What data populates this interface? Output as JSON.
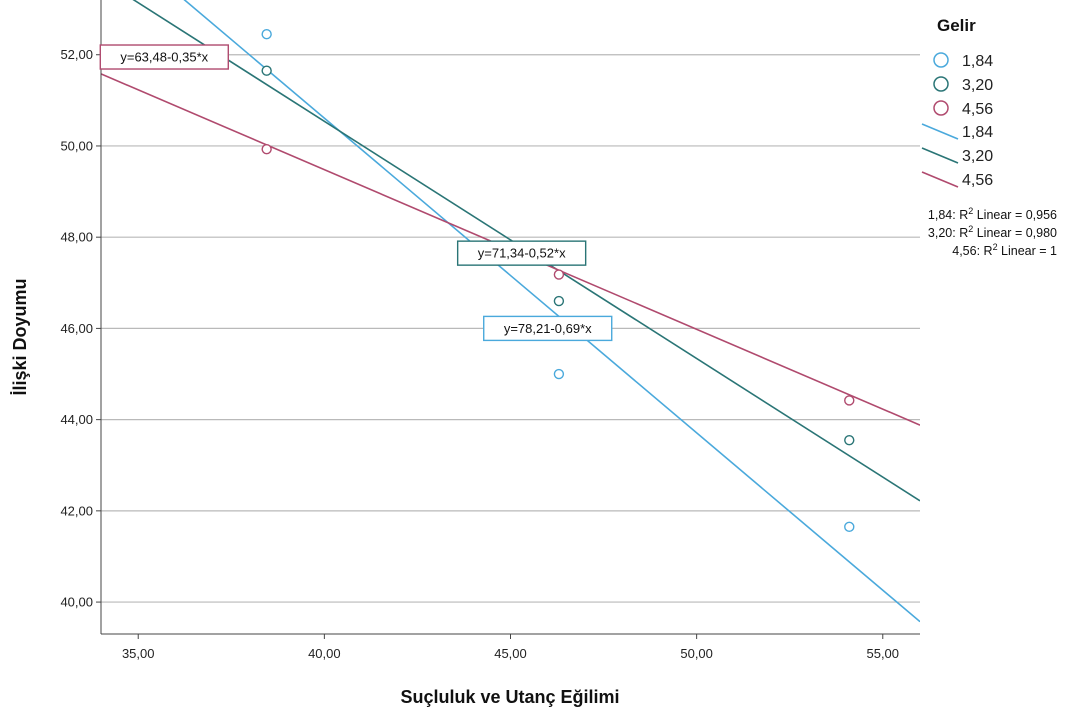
{
  "chart_data": {
    "type": "scatter",
    "xlabel": "Suçluluk ve Utanç Eğilimi",
    "ylabel": "İlişki Doyumu",
    "xlim": [
      34.0,
      56.0
    ],
    "ylim": [
      39.3,
      53.2
    ],
    "x_ticks": [
      35,
      40,
      45,
      50,
      55
    ],
    "y_ticks": [
      40,
      42,
      44,
      46,
      48,
      50,
      52
    ],
    "x_tick_labels": [
      "35,00",
      "40,00",
      "45,00",
      "50,00",
      "55,00"
    ],
    "y_tick_labels": [
      "40,00",
      "42,00",
      "44,00",
      "46,00",
      "48,00",
      "50,00",
      "52,00"
    ],
    "grid": "horizontal",
    "legend": {
      "title": "Gelir",
      "placement": "top-right",
      "marker_labels": [
        "1,84",
        "3,20",
        "4,56"
      ],
      "line_labels": [
        "1,84",
        "3,20",
        "4,56"
      ]
    },
    "r2_notes": [
      {
        "prefix": "1,84: R",
        "sup": "2",
        "suffix": " Linear = 0,956"
      },
      {
        "prefix": "3,20: R",
        "sup": "2",
        "suffix": " Linear = 0,980"
      },
      {
        "prefix": "4,56: R",
        "sup": "2",
        "suffix": " Linear = 1"
      }
    ],
    "series": [
      {
        "name": "1,84",
        "color": "#4aa9dc",
        "points": [
          [
            38.45,
            52.45
          ],
          [
            46.3,
            45.0
          ],
          [
            54.1,
            41.65
          ]
        ],
        "fit": {
          "intercept": 78.21,
          "slope": -0.69,
          "equation": "y=78,21-0,69*x",
          "label_x": 46.0,
          "label_y": 46.0
        }
      },
      {
        "name": "3,20",
        "color": "#2a7576",
        "points": [
          [
            38.45,
            51.65
          ],
          [
            46.3,
            46.6
          ],
          [
            54.1,
            43.55
          ]
        ],
        "fit": {
          "intercept": 71.34,
          "slope": -0.52,
          "equation": "y=71,34-0,52*x",
          "label_x": 45.3,
          "label_y": 47.65
        }
      },
      {
        "name": "4,56",
        "color": "#b04a6e",
        "points": [
          [
            38.45,
            49.93
          ],
          [
            46.3,
            47.18
          ],
          [
            54.1,
            44.42
          ]
        ],
        "fit": {
          "intercept": 63.48,
          "slope": -0.35,
          "equation": "y=63,48-0,35*x",
          "label_x": 35.7,
          "label_y": 51.95
        }
      }
    ]
  }
}
